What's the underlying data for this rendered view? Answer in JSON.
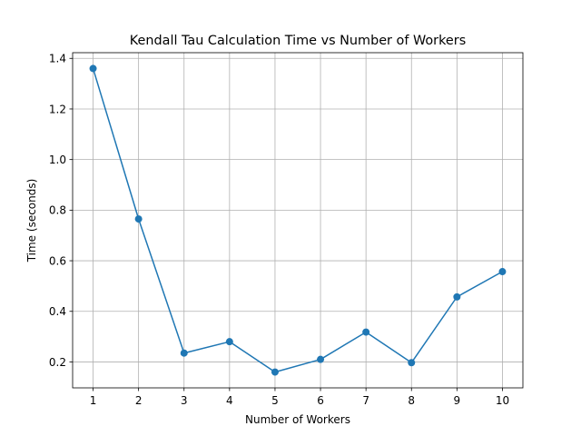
{
  "chart_data": {
    "type": "line",
    "title": "Kendall Tau Calculation Time vs Number of Workers",
    "xlabel": "Number of Workers",
    "ylabel": "Time (seconds)",
    "x": [
      1,
      2,
      3,
      4,
      5,
      6,
      7,
      8,
      9,
      10
    ],
    "series": [
      {
        "values": [
          1.36,
          0.765,
          0.235,
          0.28,
          0.16,
          0.21,
          0.318,
          0.197,
          0.457,
          0.557
        ]
      }
    ],
    "xticks": [
      1,
      2,
      3,
      4,
      5,
      6,
      7,
      8,
      9,
      10
    ],
    "xtick_labels": [
      "1",
      "2",
      "3",
      "4",
      "5",
      "6",
      "7",
      "8",
      "9",
      "10"
    ],
    "yticks": [
      0.2,
      0.4,
      0.6,
      0.8,
      1.0,
      1.2,
      1.4
    ],
    "ytick_labels": [
      "0.2",
      "0.4",
      "0.6",
      "0.8",
      "1.0",
      "1.2",
      "1.4"
    ],
    "xlim": [
      0.55,
      10.45
    ],
    "ylim": [
      0.0975,
      1.4225
    ],
    "grid": true,
    "line_color": "#1f77b4",
    "grid_color": "#b0b0b0"
  }
}
